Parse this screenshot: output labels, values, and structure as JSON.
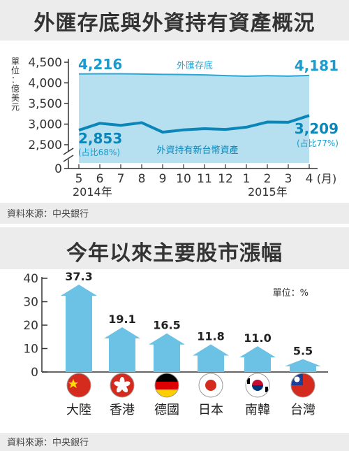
{
  "panel1": {
    "title": "外匯存底與外資持有資產概況",
    "unit_label": [
      "單",
      "位",
      "：",
      "億",
      "美",
      "元"
    ],
    "source": "資料來源：中央銀行"
  },
  "panel2": {
    "title": "今年以來主要股市漲幅",
    "unit_label": "單位：%",
    "source": "資料來源：中央銀行"
  },
  "colors": {
    "reserve_area": "#b6dff0",
    "reserve_line": "#2aa6d6",
    "foreign_line": "#0a86b8",
    "value_text": "#1a9bcd",
    "arrow": "#6cc2e4",
    "panel_bg": "#ececec"
  },
  "chart_data": [
    {
      "type": "area",
      "x": [
        "5",
        "6",
        "7",
        "8",
        "9",
        "10",
        "11",
        "12",
        "1",
        "2",
        "3",
        "4"
      ],
      "x_suffix": "(月)",
      "year_labels": [
        "2014年",
        "2015年"
      ],
      "yticks": [
        0,
        2500,
        3000,
        3500,
        4000,
        4500
      ],
      "ytick_labels": [
        "0",
        "2,500",
        "3,000",
        "3,500",
        "4,000",
        "4,500"
      ],
      "ylim": [
        2000,
        4700
      ],
      "axis_break": true,
      "series": [
        {
          "name": "外匯存底",
          "values": [
            4216,
            4221,
            4221,
            4214,
            4206,
            4201,
            4193,
            4175,
            4160,
            4174,
            4164,
            4181
          ]
        },
        {
          "name": "外資持有新台幣資產",
          "values": [
            2853,
            3020,
            2970,
            3035,
            2805,
            2860,
            2890,
            2870,
            2925,
            3050,
            3045,
            3209
          ]
        }
      ],
      "annotations": {
        "reserve_start": "4,216",
        "reserve_end": "4,181",
        "foreign_start": "2,853",
        "foreign_start_share": "(占比68%)",
        "foreign_end": "3,209",
        "foreign_end_share": "(占比77%)"
      }
    },
    {
      "type": "bar",
      "categories": [
        "大陸",
        "香港",
        "德國",
        "日本",
        "南韓",
        "台灣"
      ],
      "values": [
        37.3,
        19.1,
        16.5,
        11.8,
        11.0,
        5.5
      ],
      "value_labels": [
        "37.3",
        "19.1",
        "16.5",
        "11.8",
        "11.0",
        "5.5"
      ],
      "yticks": [
        0,
        10,
        20,
        30,
        40
      ],
      "ytick_labels": [
        "0",
        "10",
        "20",
        "30",
        "40"
      ],
      "ylim": [
        0,
        40
      ]
    }
  ]
}
